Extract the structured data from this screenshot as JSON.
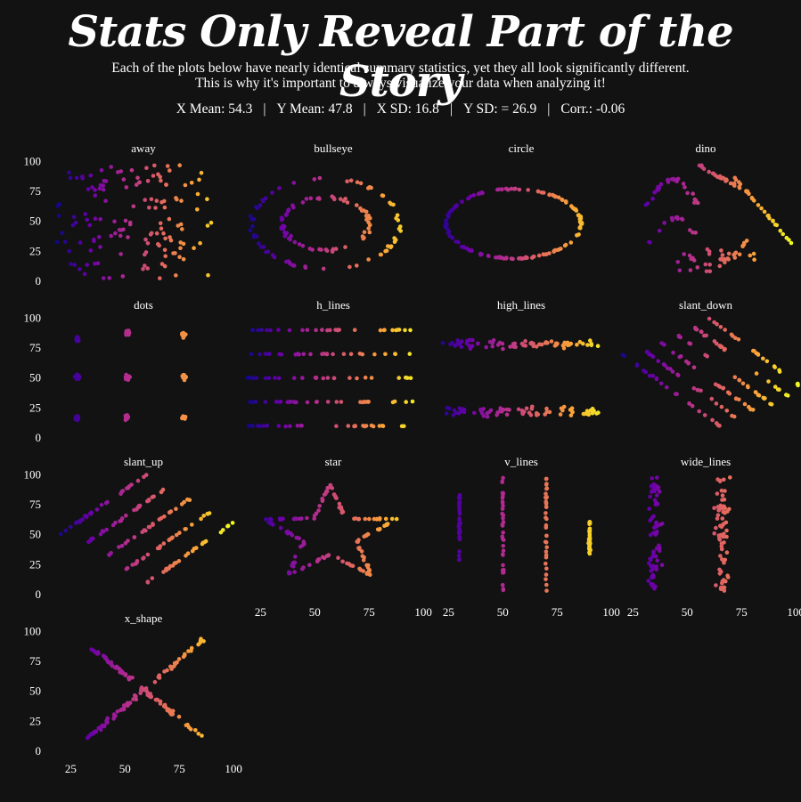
{
  "title": "Stats Only Reveal Part of the Story",
  "subtitle_line1": "Each of the plots below have nearly identical summary statistics, yet they all look significantly different.",
  "subtitle_line2": "This is why it's important to always visualize your data when analyzing it!",
  "stats": [
    "X Mean: 54.3",
    "Y Mean: 47.8",
    "X SD: 16.8",
    "Y SD: = 26.9",
    "Corr.: -0.06"
  ],
  "colors": {
    "background": "#121212",
    "text": "#ffffff",
    "gradient": [
      "#0d0887",
      "#6a00a8",
      "#b12a90",
      "#e16462",
      "#fca636",
      "#f0f921"
    ]
  },
  "chart_data": {
    "type": "scatter",
    "facet_layout": "4 columns, 4 rows, shared axes",
    "x_ticks": [
      25,
      50,
      75,
      100
    ],
    "y_ticks": [
      0,
      25,
      50,
      75,
      100
    ],
    "xlim": [
      15,
      102
    ],
    "ylim": [
      -3,
      101
    ],
    "color_by": "x value (plasma gradient)",
    "grid": false,
    "legend": "none",
    "panels": [
      {
        "name": "away",
        "shape": "away",
        "n": 142
      },
      {
        "name": "bullseye",
        "shape": "bullseye",
        "n": 142
      },
      {
        "name": "circle",
        "shape": "circle",
        "n": 142
      },
      {
        "name": "dino",
        "shape": "dino",
        "n": 142
      },
      {
        "name": "dots",
        "shape": "dots",
        "n": 142
      },
      {
        "name": "h_lines",
        "shape": "h_lines",
        "n": 142
      },
      {
        "name": "high_lines",
        "shape": "high_lines",
        "n": 142
      },
      {
        "name": "slant_down",
        "shape": "slant_down",
        "n": 142
      },
      {
        "name": "slant_up",
        "shape": "slant_up",
        "n": 142
      },
      {
        "name": "star",
        "shape": "star",
        "n": 142
      },
      {
        "name": "v_lines",
        "shape": "v_lines",
        "n": 142
      },
      {
        "name": "wide_lines",
        "shape": "wide_lines",
        "n": 142
      },
      {
        "name": "x_shape",
        "shape": "x_shape",
        "n": 142
      }
    ]
  }
}
